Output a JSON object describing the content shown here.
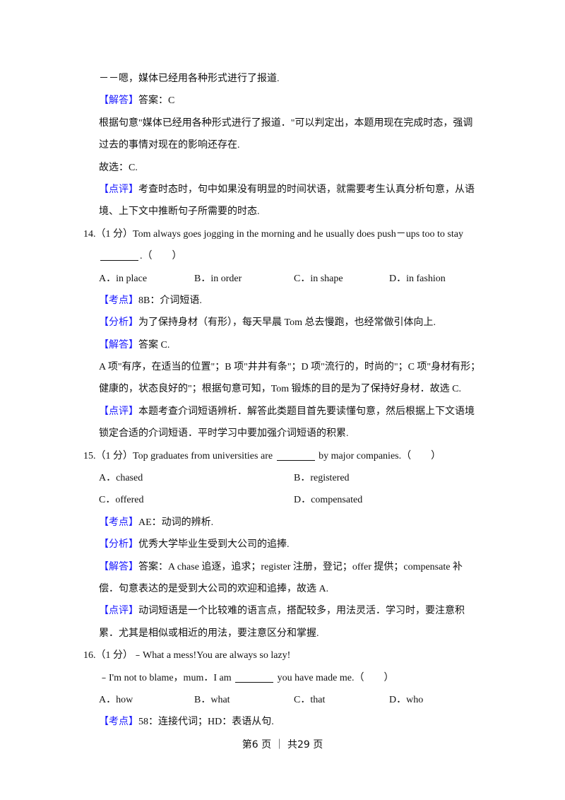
{
  "tags": {
    "answer": "【解答】",
    "comment": "【点评】",
    "point": "【考点】",
    "analysis": "【分析】"
  },
  "q13": {
    "dialog_end": "－－嗯，媒体已经用各种形式进行了报道.",
    "answer": "答案：C",
    "explain1": "根据句意\"媒体已经用各种形式进行了报道．\"可以判定出，本题用现在完成时态，强调",
    "explain2": "过去的事情对现在的影响还存在.",
    "choose": "故选：C.",
    "comment1": "考查时态时，句中如果没有明显的时间状语，就需要考生认真分析句意，从语",
    "comment2": "境、上下文中推断句子所需要的时态."
  },
  "q14": {
    "stem1": "14.（1 分）Tom always goes jogging in the morning and he usually does push－ups too to stay",
    "stem2_end": ".（　　）",
    "options": [
      "A．in place",
      "B．in order",
      "C．in shape",
      "D．in fashion"
    ],
    "point": "8B：介词短语.",
    "analysis": "为了保持身材（有形），每天早晨 Tom 总去慢跑，也经常做引体向上.",
    "answer": "答案 C.",
    "explain1": "A 项\"有序，在适当的位置\"；B 项\"井井有条\"；D 项\"流行的，时尚的\"；C 项\"身材有形；",
    "explain2": "健康的，状态良好的\"；根据句意可知，Tom 锻炼的目的是为了保持好身材．故选 C.",
    "comment1": "本题考查介词短语辨析．解答此类题目首先要读懂句意，然后根据上下文语境",
    "comment2": "锁定合适的介词短语．平时学习中要加强介词短语的积累."
  },
  "q15": {
    "stem_a": "15.（1 分）Top graduates from universities are",
    "stem_b": "by major companies.（　　）",
    "options": [
      "A．chased",
      "B．registered",
      "C．offered",
      "D．compensated"
    ],
    "point": "AE：动词的辨析.",
    "analysis": "优秀大学毕业生受到大公司的追捧.",
    "answer1": "答案：A chase 追逐，追求；register 注册，登记；offer 提供；compensate 补",
    "answer2": "偿．句意表达的是受到大公司的欢迎和追捧，故选 A.",
    "comment1": "动词短语是一个比较难的语言点，搭配较多，用法灵活．学习时，要注意积",
    "comment2": "累．尤其是相似或相近的用法，要注意区分和掌握."
  },
  "q16": {
    "stem1": "16.（1 分）﹣What a mess!You are always so lazy!",
    "stem2_a": "﹣I'm not to blame，mum．I am",
    "stem2_b": "you have made me.（　　）",
    "options": [
      "A．how",
      "B．what",
      "C．that",
      "D．who"
    ],
    "point": "58：连接代词；HD：表语从句."
  },
  "footer": "第6 页 ｜ 共29 页"
}
